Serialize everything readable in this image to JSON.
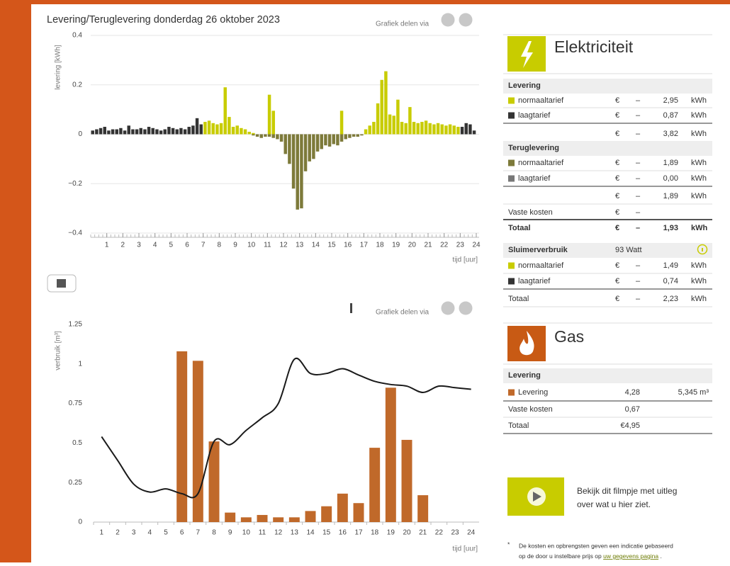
{
  "chart_data": [
    {
      "type": "bar",
      "title": "Levering/Teruglevering donderdag 26 oktober 2023",
      "share_text": "Grafiek delen via",
      "y_label": "levering [kWh]",
      "x_label": "tijd [uur]",
      "x": [
        0,
        0.25,
        0.5,
        0.75,
        1,
        1.25,
        1.5,
        1.75,
        2,
        2.25,
        2.5,
        2.75,
        3,
        3.25,
        3.5,
        3.75,
        4,
        4.25,
        4.5,
        4.75,
        5,
        5.25,
        5.5,
        5.75,
        6,
        6.25,
        6.5,
        6.75,
        7,
        7.25,
        7.5,
        7.75,
        8,
        8.25,
        8.5,
        8.75,
        9,
        9.25,
        9.5,
        9.75,
        10,
        10.25,
        10.5,
        10.75,
        11,
        11.25,
        11.5,
        11.75,
        12,
        12.25,
        12.5,
        12.75,
        13,
        13.25,
        13.5,
        13.75,
        14,
        14.25,
        14.5,
        14.75,
        15,
        15.25,
        15.5,
        15.75,
        16,
        16.25,
        16.5,
        16.75,
        17,
        17.25,
        17.5,
        17.75,
        18,
        18.25,
        18.5,
        18.75,
        19,
        19.25,
        19.5,
        19.75,
        20,
        20.25,
        20.5,
        20.75,
        21,
        21.25,
        21.5,
        21.75,
        22,
        22.25,
        22.5,
        22.75,
        23,
        23.25,
        23.5,
        23.75
      ],
      "xlim": [
        0,
        24
      ],
      "xticks": [
        1,
        2,
        3,
        4,
        5,
        6,
        7,
        8,
        9,
        10,
        11,
        12,
        13,
        14,
        15,
        16,
        17,
        18,
        19,
        20,
        21,
        22,
        23,
        24
      ],
      "ylim": [
        -0.4,
        0.4
      ],
      "yticks": [
        {
          "value": -0.4,
          "label": "−0.4"
        },
        {
          "value": -0.2,
          "label": "−0.2"
        },
        0,
        0.2,
        0.4
      ],
      "grid": true,
      "series": [
        {
          "color": "#333333",
          "values": [
            0.015,
            0.02,
            0.025,
            0.03,
            0.015,
            0.02,
            0.02,
            0.025,
            0.015,
            0.035,
            0.02,
            0.02,
            0.025,
            0.02,
            0.03,
            0.025,
            0.02,
            0.015,
            0.02,
            0.03,
            0.025,
            0.02,
            0.025,
            0.02,
            0.03,
            0.035,
            0.065,
            0.04,
            null,
            null,
            null,
            null,
            null,
            null,
            null,
            null,
            null,
            null,
            null,
            null,
            null,
            null,
            null,
            null,
            null,
            null,
            null,
            null,
            null,
            null,
            null,
            null,
            null,
            null,
            null,
            null,
            null,
            null,
            null,
            null,
            null,
            null,
            null,
            null,
            null,
            null,
            null,
            null,
            null,
            null,
            null,
            null,
            null,
            null,
            null,
            null,
            null,
            null,
            null,
            null,
            null,
            null,
            null,
            null,
            null,
            null,
            null,
            null,
            null,
            null,
            null,
            null,
            0.03,
            0.045,
            0.04,
            0.015
          ]
        },
        {
          "color": "#c8cc00",
          "values": [
            null,
            null,
            null,
            null,
            null,
            null,
            null,
            null,
            null,
            null,
            null,
            null,
            null,
            null,
            null,
            null,
            null,
            null,
            null,
            null,
            null,
            null,
            null,
            null,
            null,
            null,
            null,
            null,
            0.05,
            0.055,
            0.045,
            0.04,
            0.045,
            0.19,
            0.07,
            0.03,
            0.035,
            0.025,
            0.02,
            0.01,
            0.005,
            null,
            null,
            null,
            0.16,
            0.095,
            null,
            null,
            null,
            null,
            null,
            null,
            null,
            null,
            null,
            null,
            null,
            null,
            null,
            null,
            null,
            null,
            0.095,
            null,
            null,
            null,
            null,
            null,
            0.02,
            0.035,
            0.05,
            0.125,
            0.22,
            0.255,
            0.08,
            0.075,
            0.14,
            0.05,
            0.045,
            0.11,
            0.05,
            0.045,
            0.05,
            0.055,
            0.045,
            0.04,
            0.045,
            0.04,
            0.035,
            0.04,
            0.035,
            0.03,
            null,
            null,
            null,
            null
          ]
        },
        {
          "color": "#7d7a3a",
          "values": [
            null,
            null,
            null,
            null,
            null,
            null,
            null,
            null,
            null,
            null,
            null,
            null,
            null,
            null,
            null,
            null,
            null,
            null,
            null,
            null,
            null,
            null,
            null,
            null,
            null,
            null,
            null,
            null,
            null,
            null,
            null,
            null,
            null,
            null,
            null,
            null,
            null,
            null,
            null,
            null,
            -0.005,
            -0.01,
            -0.015,
            -0.01,
            -0.01,
            -0.015,
            -0.02,
            -0.03,
            -0.08,
            -0.12,
            -0.22,
            -0.305,
            -0.3,
            -0.15,
            -0.11,
            -0.1,
            -0.07,
            -0.06,
            -0.045,
            -0.05,
            -0.04,
            -0.045,
            -0.03,
            -0.02,
            -0.015,
            -0.01,
            -0.01,
            -0.005,
            null,
            null,
            null,
            null,
            null,
            null,
            null,
            null,
            null,
            null,
            null,
            null,
            null,
            null,
            null,
            null,
            null,
            null,
            null,
            null,
            null,
            null,
            null,
            null,
            null,
            null,
            null,
            null
          ]
        }
      ]
    },
    {
      "type": "bar",
      "share_text": "Grafiek delen via",
      "y_label": "verbruik [m³]",
      "x_label": "tijd [uur]",
      "categories": [
        "1",
        "2",
        "3",
        "4",
        "5",
        "6",
        "7",
        "8",
        "9",
        "10",
        "11",
        "12",
        "13",
        "14",
        "15",
        "16",
        "17",
        "18",
        "19",
        "20",
        "21",
        "22",
        "23",
        "24"
      ],
      "ylim": [
        0,
        1.25
      ],
      "yticks": [
        0,
        0.25,
        0.5,
        0.75,
        1,
        1.25
      ],
      "grid": false,
      "series": [
        {
          "type": "bar",
          "color": "#c0692a",
          "values": [
            null,
            null,
            null,
            null,
            null,
            1.08,
            1.02,
            0.51,
            0.06,
            0.03,
            0.045,
            0.03,
            0.03,
            0.07,
            0.1,
            0.18,
            0.12,
            0.47,
            0.85,
            0.52,
            0.17,
            null,
            null,
            null
          ]
        },
        {
          "type": "line",
          "color": "#1a1a1a",
          "values": [
            0.54,
            0.39,
            0.24,
            0.19,
            0.21,
            0.18,
            0.18,
            0.51,
            0.49,
            0.58,
            0.66,
            0.75,
            1.03,
            0.94,
            0.94,
            0.97,
            0.93,
            0.89,
            0.87,
            0.86,
            0.82,
            0.86,
            0.85,
            0.84
          ]
        }
      ]
    }
  ],
  "elektriciteit": {
    "title": "Elektriciteit",
    "levering": {
      "title": "Levering",
      "rows": [
        [
          "normaaltarief",
          "€",
          "–",
          "2,95",
          "kWh"
        ],
        [
          "laagtarief",
          "€",
          "–",
          "0,87",
          "kWh"
        ]
      ],
      "subtotal": [
        "€",
        "–",
        "3,82",
        "kWh"
      ]
    },
    "teruglevering": {
      "title": "Teruglevering",
      "rows": [
        [
          "normaaltarief",
          "€",
          "–",
          "1,89",
          "kWh"
        ],
        [
          "laagtarief",
          "€",
          "–",
          "0,00",
          "kWh"
        ]
      ],
      "subtotal": [
        "€",
        "–",
        "1,89",
        "kWh"
      ]
    },
    "vaste_kosten": [
      "Vaste kosten",
      "€",
      "–"
    ],
    "totaal": [
      "Totaal",
      "€",
      "–",
      "1,93",
      "kWh"
    ],
    "sluimer": {
      "title": "Sluimerverbruik",
      "watt": "93 Watt",
      "rows": [
        [
          "normaaltarief",
          "€",
          "–",
          "1,49",
          "kWh"
        ],
        [
          "laagtarief",
          "€",
          "–",
          "0,74",
          "kWh"
        ]
      ],
      "totaal": [
        "Totaal",
        "€",
        "–",
        "2,23",
        "kWh"
      ]
    }
  },
  "gas": {
    "title": "Gas",
    "header": "Levering",
    "rows": [
      [
        "Levering",
        "4,28",
        "5,345 m³"
      ],
      [
        "Vaste kosten",
        "0,67"
      ],
      [
        "Totaal",
        "€4,95"
      ]
    ]
  },
  "video_text": [
    "Bekijk dit filmpje met uitleg",
    "over wat u hier ziet."
  ],
  "footnote": {
    "star": "*",
    "line1": "De kosten en opbrengsten geven een indicatie gebaseerd",
    "line2": "op de door u instelbare prijs op",
    "link": "uw gegevens pagina",
    "end": "."
  }
}
